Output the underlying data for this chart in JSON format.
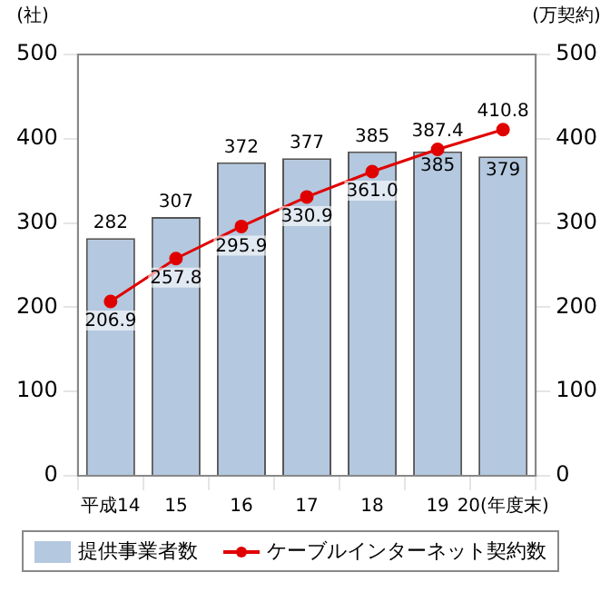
{
  "chart_data": {
    "type": "bar",
    "categories": [
      "平成14",
      "15",
      "16",
      "17",
      "18",
      "19",
      "20(年度末)"
    ],
    "ylabel": "(社)",
    "y2label": "(万契約)",
    "ylim": [
      0,
      500
    ],
    "yticks": [
      0,
      100,
      200,
      300,
      400,
      500
    ],
    "y2lim": [
      0,
      500
    ],
    "y2ticks": [
      0,
      100,
      200,
      300,
      400,
      500
    ],
    "grid": false,
    "legend": "bottom",
    "series": [
      {
        "name": "提供事業者数",
        "type": "bar",
        "color": "#b4c8df",
        "values": [
          282,
          307,
          372,
          377,
          385,
          385,
          379
        ],
        "value_labels": [
          "282",
          "307",
          "372",
          "377",
          "385",
          "385",
          "379"
        ]
      },
      {
        "name": "ケーブルインターネット契約数",
        "type": "line",
        "axis": "y2",
        "color": "#e00000",
        "marker": "circle",
        "values": [
          206.9,
          257.8,
          295.9,
          330.9,
          361.0,
          387.4,
          410.8
        ],
        "value_labels": [
          "206.9",
          "257.8",
          "295.9",
          "330.9",
          "361.0",
          "387.4",
          "410.8"
        ]
      }
    ]
  }
}
